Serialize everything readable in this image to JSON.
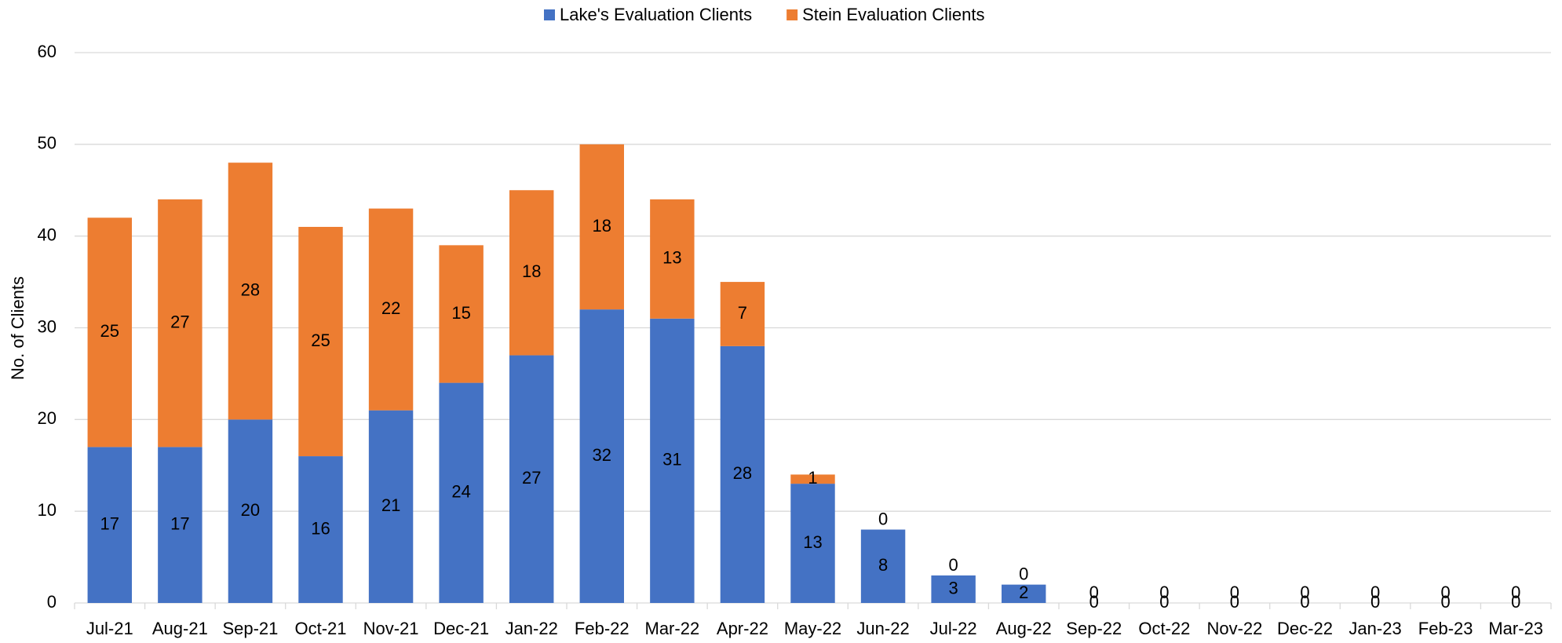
{
  "chart_data": {
    "type": "stacked_bar",
    "ylabel": "No. of Clients",
    "categories": [
      "Jul-21",
      "Aug-21",
      "Sep-21",
      "Oct-21",
      "Nov-21",
      "Dec-21",
      "Jan-22",
      "Feb-22",
      "Mar-22",
      "Apr-22",
      "May-22",
      "Jun-22",
      "Jul-22",
      "Aug-22",
      "Sep-22",
      "Oct-22",
      "Nov-22",
      "Dec-22",
      "Jan-23",
      "Feb-23",
      "Mar-23"
    ],
    "series": [
      {
        "name": "Lake's Evaluation Clients",
        "color": "#4472c4",
        "values": [
          17,
          17,
          20,
          16,
          21,
          24,
          27,
          32,
          31,
          28,
          13,
          8,
          3,
          2,
          0,
          0,
          0,
          0,
          0,
          0,
          0
        ]
      },
      {
        "name": "Stein Evaluation Clients",
        "color": "#ed7d31",
        "values": [
          25,
          27,
          28,
          25,
          22,
          15,
          18,
          18,
          13,
          7,
          1,
          0,
          0,
          0,
          0,
          0,
          0,
          0,
          0,
          0,
          0
        ]
      }
    ],
    "ylim": [
      0,
      60
    ],
    "yticks": [
      0,
      10,
      20,
      30,
      40,
      50,
      60
    ],
    "grid": true,
    "legend": "top"
  }
}
